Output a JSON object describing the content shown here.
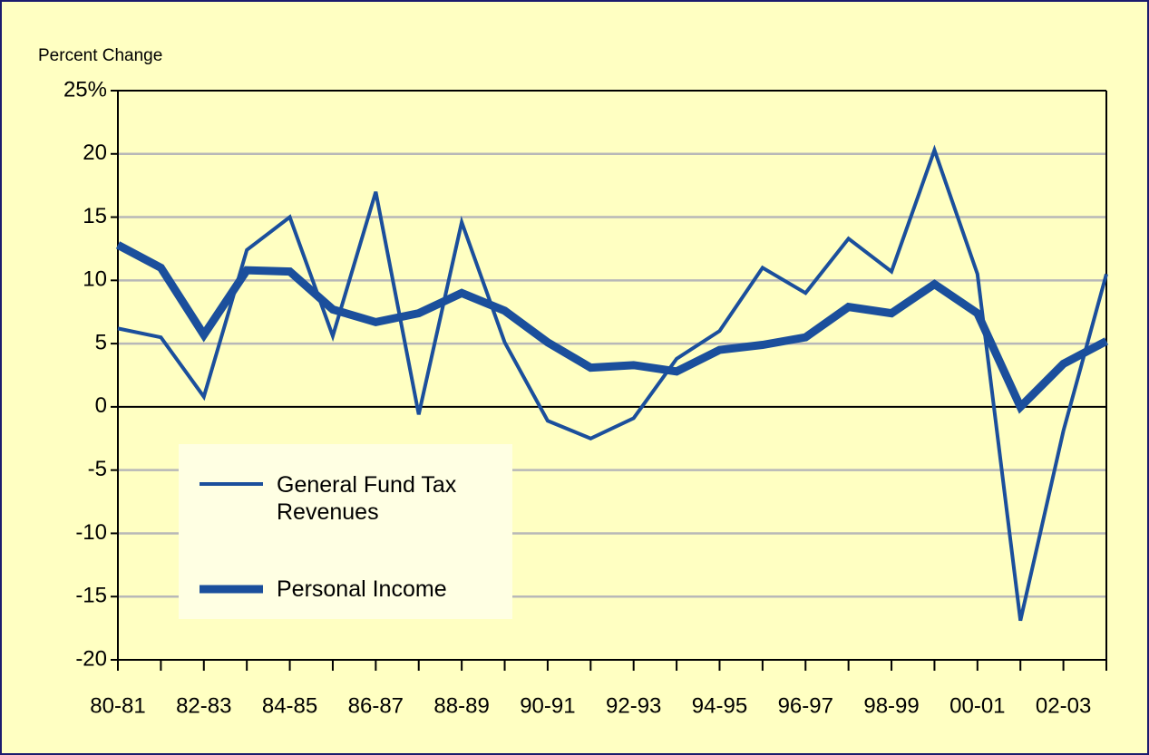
{
  "chart_data": {
    "type": "line",
    "y_label": "Percent Change",
    "categories": [
      "80-81",
      null,
      "82-83",
      null,
      "84-85",
      null,
      "86-87",
      null,
      "88-89",
      null,
      "90-91",
      null,
      "92-93",
      null,
      "94-95",
      null,
      "96-97",
      null,
      "98-99",
      null,
      "00-01",
      null,
      "02-03",
      null
    ],
    "series": [
      {
        "name": "General Fund Tax Revenues",
        "color": "#1b4f9c",
        "width": 4,
        "values": [
          6.2,
          5.5,
          0.8,
          12.4,
          15.0,
          5.6,
          17.0,
          -0.6,
          14.6,
          5.1,
          -1.1,
          -2.5,
          -0.9,
          3.8,
          6.0,
          11.0,
          9.0,
          13.3,
          10.7,
          20.3,
          10.5,
          -16.9,
          -1.9,
          10.5
        ]
      },
      {
        "name": "Personal Income",
        "color": "#1b4f9c",
        "width": 9,
        "values": [
          12.8,
          11.0,
          5.7,
          10.8,
          10.7,
          7.7,
          6.7,
          7.4,
          9.0,
          7.6,
          5.1,
          3.1,
          3.3,
          2.8,
          4.5,
          4.9,
          5.5,
          7.9,
          7.4,
          9.7,
          7.4,
          0,
          3.4,
          5.2
        ]
      }
    ],
    "ylim": [
      -20,
      25
    ],
    "yticks": [
      -20,
      -15,
      -10,
      -5,
      0,
      5,
      10,
      15,
      20,
      {
        "value": 25,
        "label": "25%"
      }
    ],
    "grid": true,
    "legend": "lower left"
  }
}
